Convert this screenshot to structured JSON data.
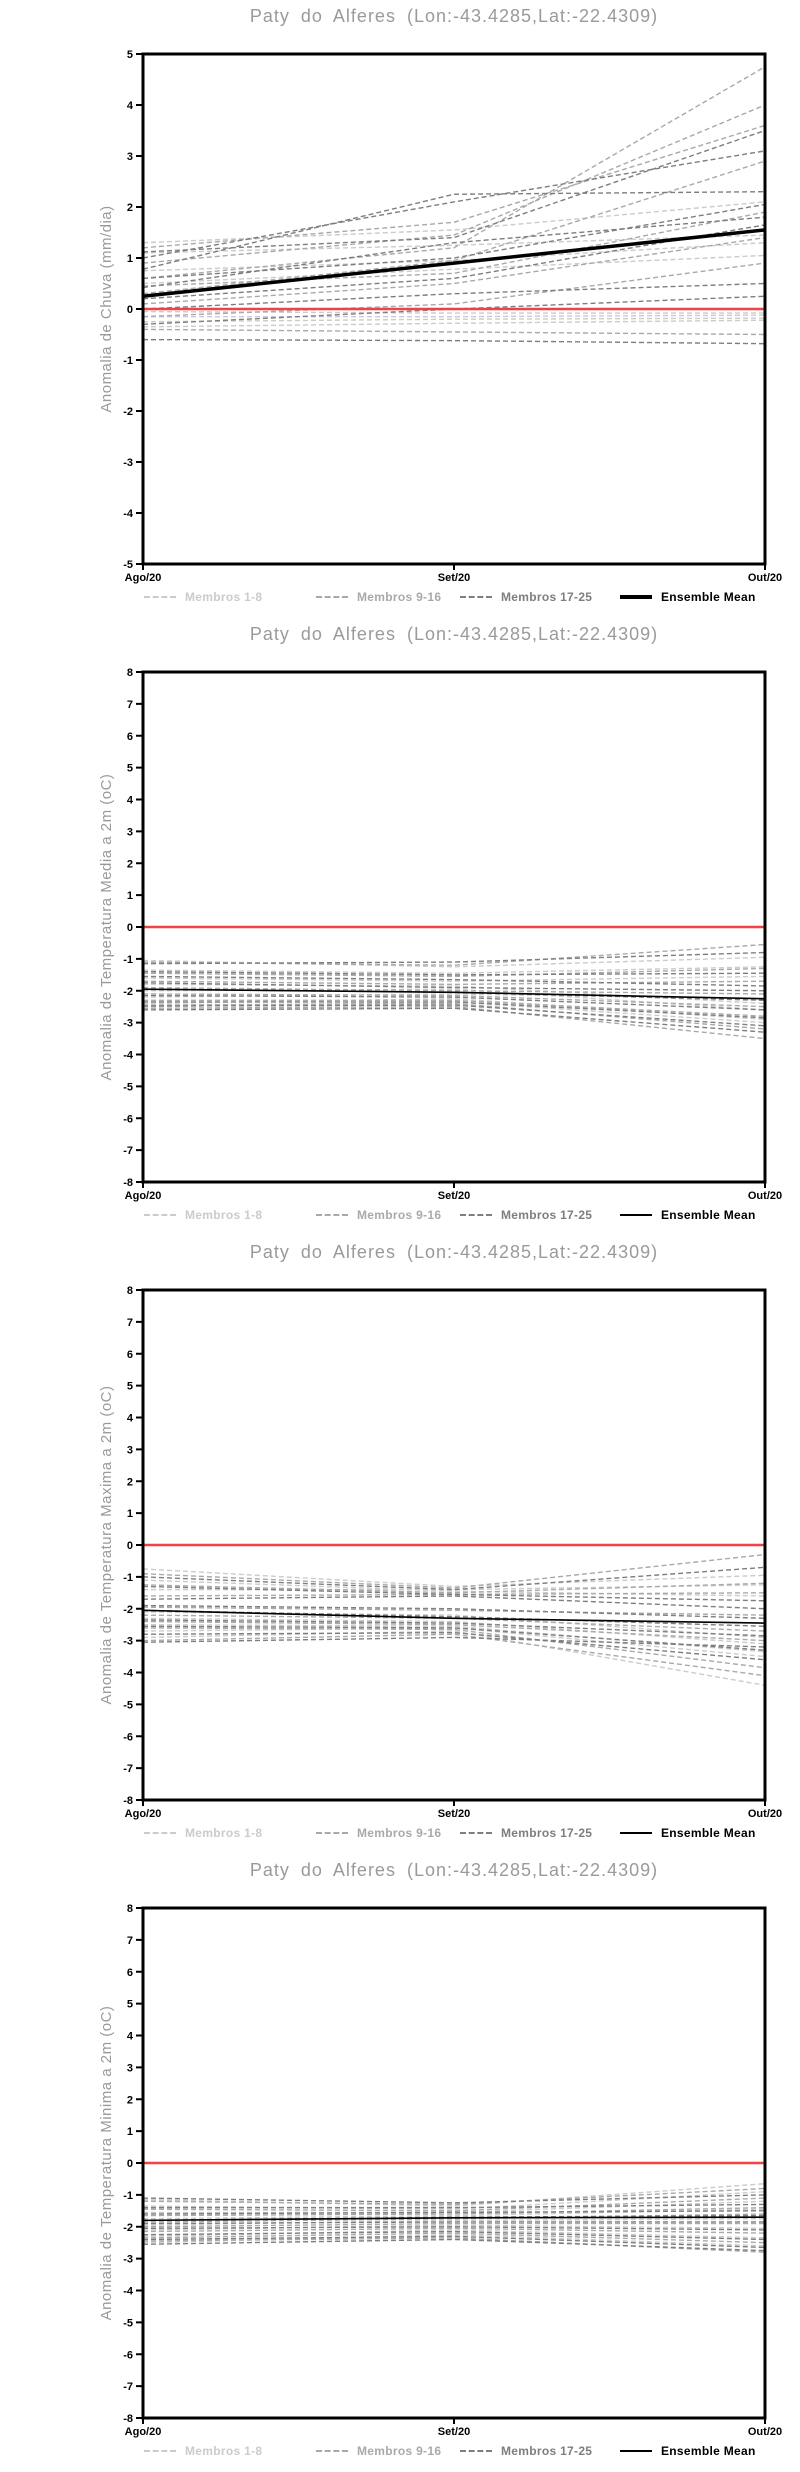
{
  "station": {
    "title": "Paty do Alferes (Lon:-43.4285,Lat:-22.4309)"
  },
  "colors": {
    "title_gray": "#9a9a9a",
    "members_1_8": "#cbcbcb",
    "members_9_16": "#a9a9a9",
    "members_17_25": "#7e7e7e",
    "ensemble_mean": "#000000",
    "zero_line_red": "#f04146",
    "axis_black": "#000000"
  },
  "legend": {
    "items": [
      {
        "label": "Membros 1-8",
        "color": "#cbcbcb",
        "style": "dashed"
      },
      {
        "label": "Membros 9-16",
        "color": "#a9a9a9",
        "style": "dashed"
      },
      {
        "label": "Membros 17-25",
        "color": "#7e7e7e",
        "style": "dashed"
      },
      {
        "label": "Ensemble Mean",
        "color": "#000000",
        "style": "solid"
      }
    ],
    "entry_lefts": [
      144,
      316,
      460,
      620
    ]
  },
  "chart_data": [
    {
      "type": "line",
      "title": "Paty do Alferes (Lon:-43.4285,Lat:-22.4309)",
      "ylabel": "Anomalia de Chuva (mm/dia)",
      "x_labels": [
        "Ago/20",
        "Set/20",
        "Out/20"
      ],
      "ylim": [
        -5,
        5
      ],
      "ytick_step": 1,
      "grid": false,
      "legend_position": "bottom",
      "zero_line": {
        "value": 0,
        "color": "#f04146"
      },
      "series_groups": [
        {
          "name": "Membros 1-8",
          "color": "#cbcbcb",
          "members": [
            [
              1.3,
              1.55,
              2.1
            ],
            [
              1.1,
              1.25,
              1.45
            ],
            [
              0.75,
              0.95,
              1.3
            ],
            [
              0.5,
              0.78,
              1.05
            ],
            [
              -0.05,
              -0.08,
              -0.08
            ],
            [
              -0.15,
              -0.15,
              -0.12
            ],
            [
              -0.25,
              -0.2,
              -0.18
            ],
            [
              -0.35,
              -0.28,
              -0.22
            ]
          ]
        },
        {
          "name": "Membros 9-16",
          "color": "#a9a9a9",
          "members": [
            [
              1.2,
              1.7,
              3.6
            ],
            [
              0.9,
              1.45,
              4.0
            ],
            [
              0.6,
              1.2,
              4.75
            ],
            [
              0.45,
              0.7,
              1.9
            ],
            [
              0.3,
              0.95,
              2.9
            ],
            [
              0.1,
              0.5,
              1.4
            ],
            [
              -0.15,
              0.1,
              0.9
            ],
            [
              -0.4,
              -0.45,
              -0.5
            ]
          ]
        },
        {
          "name": "Membros 17-25",
          "color": "#7e7e7e",
          "members": [
            [
              1.12,
              1.4,
              3.5
            ],
            [
              1.0,
              2.1,
              3.1
            ],
            [
              0.78,
              2.25,
              2.3
            ],
            [
              0.6,
              1.0,
              2.05
            ],
            [
              0.42,
              1.3,
              1.8
            ],
            [
              0.2,
              0.6,
              1.65
            ],
            [
              0.0,
              0.3,
              0.5
            ],
            [
              -0.3,
              0.0,
              0.25
            ],
            [
              -0.6,
              -0.62,
              -0.68
            ]
          ]
        }
      ],
      "mean": {
        "name": "Ensemble Mean",
        "color": "#000000",
        "width": 3.5,
        "values": [
          0.25,
          0.9,
          1.55
        ]
      }
    },
    {
      "type": "line",
      "title": "Paty do Alferes (Lon:-43.4285,Lat:-22.4309)",
      "ylabel": "Anomalia de Temperatura Media a 2m (oC)",
      "x_labels": [
        "Ago/20",
        "Set/20",
        "Out/20"
      ],
      "ylim": [
        -8,
        8
      ],
      "ytick_step": 1,
      "grid": false,
      "legend_position": "bottom",
      "zero_line": {
        "value": 0,
        "color": "#f04146"
      },
      "series_groups": [
        {
          "name": "Membros 1-8",
          "color": "#cbcbcb",
          "members": [
            [
              -1.05,
              -1.25,
              -0.95
            ],
            [
              -1.35,
              -1.45,
              -1.25
            ],
            [
              -1.6,
              -1.7,
              -1.55
            ],
            [
              -1.8,
              -1.85,
              -2.4
            ],
            [
              -2.0,
              -1.95,
              -2.6
            ],
            [
              -2.2,
              -2.1,
              -2.25
            ],
            [
              -2.4,
              -2.25,
              -2.9
            ],
            [
              -2.5,
              -2.35,
              -3.0
            ]
          ]
        },
        {
          "name": "Membros 9-16",
          "color": "#a9a9a9",
          "members": [
            [
              -1.1,
              -1.2,
              -0.55
            ],
            [
              -1.45,
              -1.55,
              -1.3
            ],
            [
              -1.7,
              -1.8,
              -1.7
            ],
            [
              -1.9,
              -2.0,
              -2.1
            ],
            [
              -2.1,
              -2.15,
              -2.5
            ],
            [
              -2.3,
              -2.3,
              -2.8
            ],
            [
              -2.45,
              -2.4,
              -3.2
            ],
            [
              -2.55,
              -2.5,
              -3.5
            ]
          ]
        },
        {
          "name": "Membros 17-25",
          "color": "#7e7e7e",
          "members": [
            [
              -1.15,
              -1.1,
              -0.8
            ],
            [
              -1.4,
              -1.5,
              -1.45
            ],
            [
              -1.55,
              -1.65,
              -1.85
            ],
            [
              -1.75,
              -1.9,
              -2.0
            ],
            [
              -1.95,
              -2.05,
              -2.3
            ],
            [
              -2.15,
              -2.2,
              -2.6
            ],
            [
              -2.35,
              -2.35,
              -2.85
            ],
            [
              -2.48,
              -2.45,
              -3.1
            ],
            [
              -2.6,
              -2.55,
              -3.3
            ]
          ]
        }
      ],
      "mean": {
        "name": "Ensemble Mean",
        "color": "#000000",
        "width": 1.6,
        "values": [
          -1.95,
          -2.05,
          -2.25
        ]
      }
    },
    {
      "type": "line",
      "title": "Paty do Alferes (Lon:-43.4285,Lat:-22.4309)",
      "ylabel": "Anomalia de Temperatura Maxima a 2m (oC)",
      "x_labels": [
        "Ago/20",
        "Set/20",
        "Out/20"
      ],
      "ylim": [
        -8,
        8
      ],
      "ytick_step": 1,
      "grid": false,
      "legend_position": "bottom",
      "zero_line": {
        "value": 0,
        "color": "#f04146"
      },
      "series_groups": [
        {
          "name": "Membros 1-8",
          "color": "#cbcbcb",
          "members": [
            [
              -0.75,
              -1.3,
              -0.95
            ],
            [
              -1.1,
              -1.45,
              -1.6
            ],
            [
              -1.4,
              -1.4,
              -1.25
            ],
            [
              -2.1,
              -2.2,
              -2.9
            ],
            [
              -2.3,
              -2.4,
              -3.1
            ],
            [
              -2.5,
              -2.55,
              -3.35
            ],
            [
              -2.7,
              -2.6,
              -3.5
            ],
            [
              -2.9,
              -2.7,
              -4.4
            ]
          ]
        },
        {
          "name": "Membros 9-16",
          "color": "#a9a9a9",
          "members": [
            [
              -0.9,
              -1.35,
              -0.3
            ],
            [
              -1.25,
              -1.5,
              -1.2
            ],
            [
              -1.6,
              -1.55,
              -1.5
            ],
            [
              -1.95,
              -2.05,
              -2.2
            ],
            [
              -2.2,
              -2.3,
              -2.7
            ],
            [
              -2.4,
              -2.5,
              -3.0
            ],
            [
              -2.6,
              -2.65,
              -3.85
            ],
            [
              -3.0,
              -2.8,
              -4.1
            ]
          ]
        },
        {
          "name": "Membros 17-25",
          "color": "#7e7e7e",
          "members": [
            [
              -1.0,
              -1.4,
              -0.7
            ],
            [
              -1.3,
              -1.55,
              -1.75
            ],
            [
              -1.7,
              -1.6,
              -2.0
            ],
            [
              -1.9,
              -2.0,
              -2.3
            ],
            [
              -2.05,
              -2.25,
              -2.55
            ],
            [
              -2.35,
              -2.45,
              -2.85
            ],
            [
              -2.55,
              -2.6,
              -3.3
            ],
            [
              -2.8,
              -2.75,
              -3.6
            ],
            [
              -3.05,
              -2.9,
              -3.2
            ]
          ]
        }
      ],
      "mean": {
        "name": "Ensemble Mean",
        "color": "#000000",
        "width": 1.6,
        "values": [
          -2.05,
          -2.3,
          -2.45
        ]
      }
    },
    {
      "type": "line",
      "title": "Paty do Alferes (Lon:-43.4285,Lat:-22.4309)",
      "ylabel": "Anomalia de Temperatura Minima a 2m (oC)",
      "x_labels": [
        "Ago/20",
        "Set/20",
        "Out/20"
      ],
      "ylim": [
        -8,
        8
      ],
      "ytick_step": 1,
      "grid": false,
      "legend_position": "bottom",
      "zero_line": {
        "value": 0,
        "color": "#f04146"
      },
      "series_groups": [
        {
          "name": "Membros 1-8",
          "color": "#cbcbcb",
          "members": [
            [
              -1.15,
              -1.35,
              -0.65
            ],
            [
              -1.35,
              -1.45,
              -0.9
            ],
            [
              -1.55,
              -1.55,
              -1.2
            ],
            [
              -1.75,
              -1.65,
              -1.45
            ],
            [
              -1.95,
              -1.8,
              -1.75
            ],
            [
              -2.1,
              -1.95,
              -2.05
            ],
            [
              -2.3,
              -2.1,
              -2.35
            ],
            [
              -2.5,
              -2.25,
              -2.6
            ]
          ]
        },
        {
          "name": "Membros 9-16",
          "color": "#a9a9a9",
          "members": [
            [
              -1.2,
              -1.3,
              -0.8
            ],
            [
              -1.45,
              -1.5,
              -1.1
            ],
            [
              -1.65,
              -1.6,
              -1.4
            ],
            [
              -1.85,
              -1.75,
              -1.6
            ],
            [
              -2.0,
              -1.9,
              -1.9
            ],
            [
              -2.15,
              -2.05,
              -2.2
            ],
            [
              -2.35,
              -2.2,
              -2.5
            ],
            [
              -2.45,
              -2.35,
              -2.8
            ]
          ]
        },
        {
          "name": "Membros 17-25",
          "color": "#7e7e7e",
          "members": [
            [
              -1.1,
              -1.25,
              -1.0
            ],
            [
              -1.4,
              -1.4,
              -1.3
            ],
            [
              -1.6,
              -1.55,
              -1.5
            ],
            [
              -1.8,
              -1.7,
              -1.65
            ],
            [
              -1.9,
              -1.85,
              -1.85
            ],
            [
              -2.05,
              -2.0,
              -2.1
            ],
            [
              -2.25,
              -2.15,
              -2.4
            ],
            [
              -2.4,
              -2.3,
              -2.65
            ],
            [
              -2.55,
              -2.4,
              -2.75
            ]
          ]
        }
      ],
      "mean": {
        "name": "Ensemble Mean",
        "color": "#000000",
        "width": 1.6,
        "values": [
          -1.8,
          -1.72,
          -1.7
        ]
      }
    }
  ]
}
